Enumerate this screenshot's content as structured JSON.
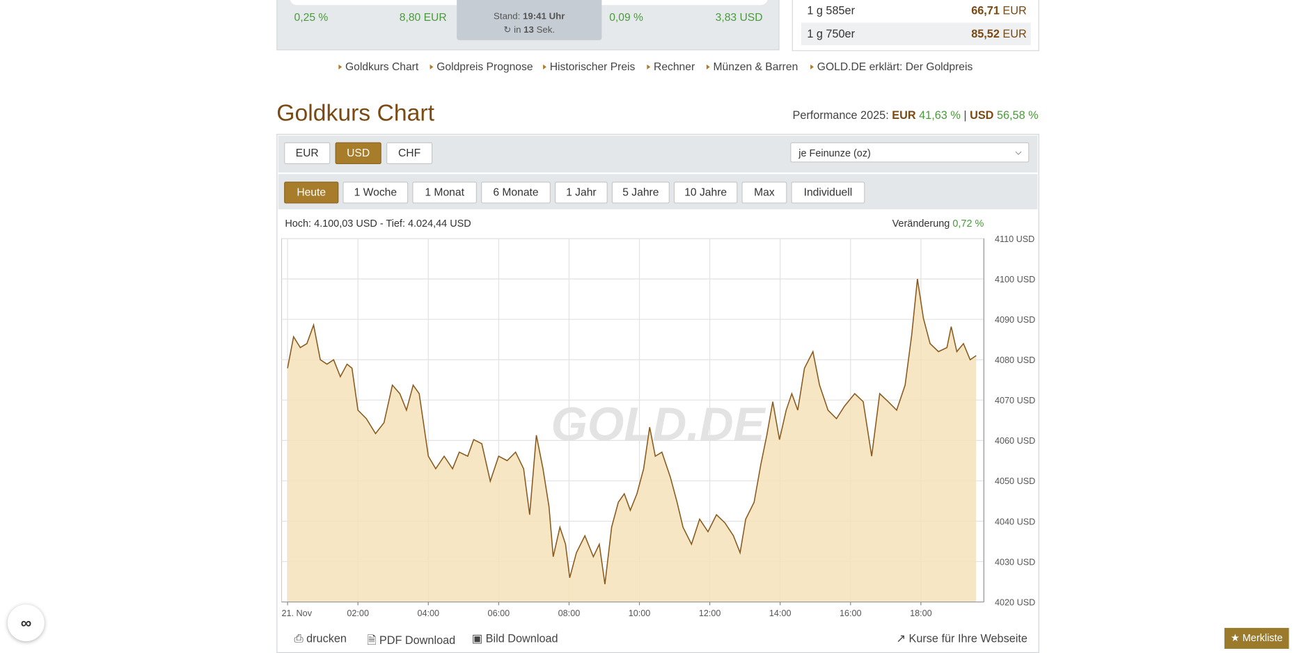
{
  "top_panel": {
    "left": {
      "change_pct": "0,25 %",
      "change_abs": "8,80 EUR"
    },
    "stand": {
      "label": "Stand:",
      "time": "19:41 Uhr",
      "refresh_prefix": "in",
      "refresh_count": "13",
      "refresh_suffix": "Sek."
    },
    "right": {
      "change_pct": "0,09 %",
      "change_abs": "3,83 USD"
    }
  },
  "price_table": {
    "rows": [
      [
        "1 g 585er",
        "66,71",
        "EUR"
      ],
      [
        "1 g 750er",
        "85,52",
        "EUR"
      ]
    ]
  },
  "nav": [
    "Goldkurs Chart",
    "Goldpreis Prognose",
    "Historischer Preis",
    "Rechner",
    "Münzen & Barren",
    "GOLD.DE erklärt: Der Goldpreis"
  ],
  "section": {
    "title": "Goldkurs Chart",
    "performance_label": "Performance 2025:",
    "eur_label": "EUR",
    "eur_value": "41,63 %",
    "separator": "|",
    "usd_label": "USD",
    "usd_value": "56,58 %"
  },
  "currency_buttons": [
    "EUR",
    "USD",
    "CHF"
  ],
  "unit_select": "je Feinunze (oz)",
  "range_buttons": [
    "Heute",
    "1 Woche",
    "1 Monat",
    "6 Monate",
    "1 Jahr",
    "5 Jahre",
    "10 Jahre",
    "Max",
    "Individuell"
  ],
  "chart_stats": {
    "high_low": "Hoch: 4.100,03 USD - Tief: 4.024,44 USD",
    "change_label": "Veränderung",
    "change_value": "0,72 %"
  },
  "watermark": "GOLD.DE",
  "chart_data": {
    "type": "area",
    "color": "#8a5a1e",
    "fill": "#f5e2b8",
    "grid": true,
    "x": [
      0,
      0.17,
      0.36,
      0.55,
      0.74,
      0.93,
      1.12,
      1.31,
      1.5,
      1.69,
      1.83,
      2,
      2.24,
      2.5,
      2.74,
      2.98,
      3.19,
      3.38,
      3.57,
      3.74,
      4,
      4.21,
      4.45,
      4.69,
      4.88,
      5.12,
      5.29,
      5.52,
      5.76,
      6,
      6.24,
      6.48,
      6.71,
      6.88,
      7.07,
      7.26,
      7.43,
      7.55,
      7.74,
      7.9,
      8.02,
      8.21,
      8.45,
      8.69,
      8.86,
      9.02,
      9.21,
      9.4,
      9.57,
      9.74,
      9.93,
      10.12,
      10.29,
      10.45,
      10.64,
      10.88,
      11.07,
      11.24,
      11.48,
      11.71,
      11.95,
      12.19,
      12.43,
      12.67,
      12.86,
      13.02,
      13.26,
      13.45,
      13.62,
      13.79,
      13.98,
      14.17,
      14.33,
      14.5,
      14.69,
      14.93,
      15.12,
      15.36,
      15.6,
      15.83,
      16.12,
      16.36,
      16.6,
      16.83,
      17.07,
      17.31,
      17.55,
      17.74,
      17.9,
      18.07,
      18.26,
      18.5,
      18.74,
      18.86,
      19.02,
      19.21,
      19.4,
      19.57
    ],
    "values": [
      4077.9,
      4085.7,
      4083,
      4084,
      4088.6,
      4080,
      4078.9,
      4080,
      4075.8,
      4078.9,
      4077.9,
      4067.5,
      4065.4,
      4061.7,
      4064.4,
      4073.7,
      4071.6,
      4067.5,
      4073.7,
      4071.6,
      4056.1,
      4053,
      4056.1,
      4053,
      4057.1,
      4056.1,
      4060.2,
      4059.2,
      4049.9,
      4056.1,
      4055,
      4057.1,
      4053,
      4041.6,
      4061.3,
      4053,
      4043.6,
      4031.2,
      4038.5,
      4034.3,
      4026,
      4032.2,
      4036.4,
      4031.2,
      4034.3,
      4024.4,
      4038.5,
      4044.7,
      4046.8,
      4042.7,
      4046.8,
      4053,
      4063.3,
      4056.1,
      4057.1,
      4050.9,
      4044.7,
      4038.5,
      4034.3,
      4040.5,
      4037.4,
      4041.6,
      4039.6,
      4036.4,
      4032.2,
      4040.5,
      4044.7,
      4054,
      4061.3,
      4069.6,
      4060.2,
      4067.5,
      4071.6,
      4067.5,
      4077.9,
      4082,
      4073.7,
      4067.5,
      4065.4,
      4068.5,
      4071.6,
      4069.6,
      4056.1,
      4071.6,
      4069.6,
      4067.5,
      4073.7,
      4086.2,
      4100,
      4090.3,
      4084,
      4082,
      4083,
      4088.2,
      4082,
      4084,
      4080,
      4081
    ],
    "xlim": [
      -0.17,
      19.79
    ],
    "xticks": [
      {
        "value": 0,
        "label": "21. Nov"
      },
      {
        "value": 2,
        "label": "02:00"
      },
      {
        "value": 4,
        "label": "04:00"
      },
      {
        "value": 6,
        "label": "06:00"
      },
      {
        "value": 8,
        "label": "08:00"
      },
      {
        "value": 10,
        "label": "10:00"
      },
      {
        "value": 12,
        "label": "12:00"
      },
      {
        "value": 14,
        "label": "14:00"
      },
      {
        "value": 16,
        "label": "16:00"
      },
      {
        "value": 18,
        "label": "18:00"
      }
    ],
    "ylim": [
      4020,
      4110
    ],
    "yticks": [
      {
        "value": 4020,
        "label": "4020 USD"
      },
      {
        "value": 4030,
        "label": "4030 USD"
      },
      {
        "value": 4040,
        "label": "4040 USD"
      },
      {
        "value": 4050,
        "label": "4050 USD"
      },
      {
        "value": 4060,
        "label": "4060 USD"
      },
      {
        "value": 4070,
        "label": "4070 USD"
      },
      {
        "value": 4080,
        "label": "4080 USD"
      },
      {
        "value": 4090,
        "label": "4090 USD"
      },
      {
        "value": 4100,
        "label": "4100 USD"
      },
      {
        "value": 4110,
        "label": "4110 USD"
      }
    ]
  },
  "footer_links": [
    "drucken",
    "PDF Download",
    "Bild Download",
    "Kurse für Ihre Webseite"
  ],
  "merkliste": "Merkliste"
}
